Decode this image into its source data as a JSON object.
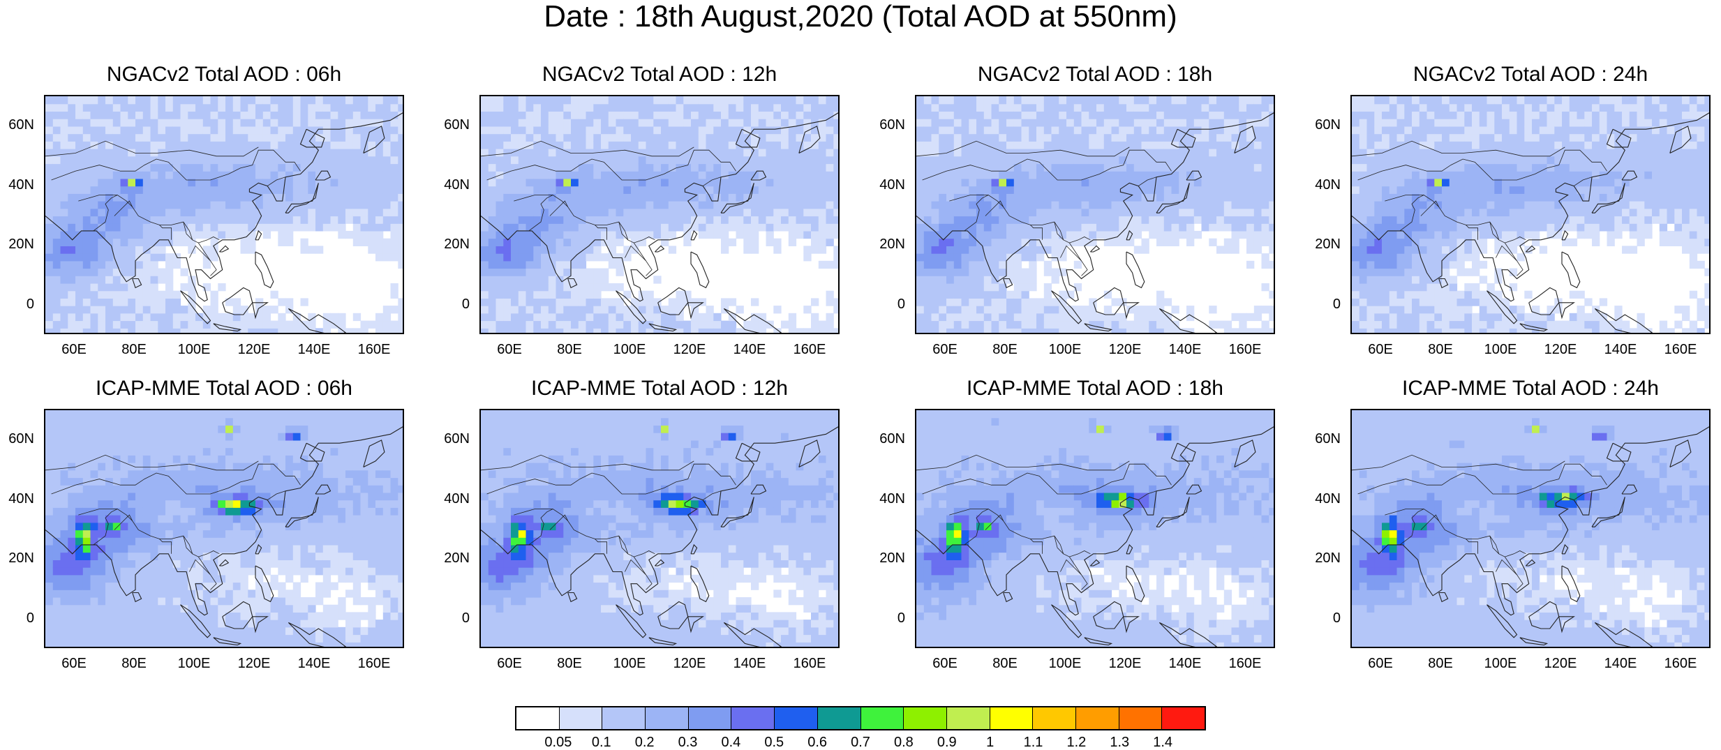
{
  "title": "Date : 18th August,2020 (Total AOD at 550nm)",
  "panels": [
    {
      "title": "NGACv2 Total AOD : 06h",
      "model": "ngac",
      "hour": 6
    },
    {
      "title": "NGACv2 Total AOD : 12h",
      "model": "ngac",
      "hour": 12
    },
    {
      "title": "NGACv2 Total AOD : 18h",
      "model": "ngac",
      "hour": 18
    },
    {
      "title": "NGACv2 Total AOD : 24h",
      "model": "ngac",
      "hour": 24
    },
    {
      "title": "ICAP-MME Total AOD : 06h",
      "model": "icap",
      "hour": 6
    },
    {
      "title": "ICAP-MME Total AOD : 12h",
      "model": "icap",
      "hour": 12
    },
    {
      "title": "ICAP-MME Total AOD : 18h",
      "model": "icap",
      "hour": 18
    },
    {
      "title": "ICAP-MME Total AOD : 24h",
      "model": "icap",
      "hour": 24
    }
  ],
  "map_extent": {
    "lon_min": 50,
    "lon_max": 170,
    "lat_min": -10,
    "lat_max": 70
  },
  "lat_ticks": [
    {
      "value": 60,
      "label": "60N"
    },
    {
      "value": 40,
      "label": "40N"
    },
    {
      "value": 20,
      "label": "20N"
    },
    {
      "value": 0,
      "label": "0"
    }
  ],
  "lon_ticks": [
    {
      "value": 60,
      "label": "60E"
    },
    {
      "value": 80,
      "label": "80E"
    },
    {
      "value": 100,
      "label": "100E"
    },
    {
      "value": 120,
      "label": "120E"
    },
    {
      "value": 140,
      "label": "140E"
    },
    {
      "value": 160,
      "label": "160E"
    }
  ],
  "colorbar": {
    "labels": [
      "0.05",
      "0.1",
      "0.2",
      "0.3",
      "0.4",
      "0.5",
      "0.6",
      "0.7",
      "0.8",
      "0.9",
      "1",
      "1.1",
      "1.2",
      "1.3",
      "1.4"
    ],
    "colors": [
      "#ffffff",
      "#d6e0fb",
      "#b4c6f8",
      "#9cb4f5",
      "#7f9cf1",
      "#6a6ff0",
      "#1f5fef",
      "#0f9a93",
      "#3ff23c",
      "#8ef000",
      "#c0ee50",
      "#ffff00",
      "#ffc800",
      "#ff9d00",
      "#ff7200",
      "#ff1a10"
    ]
  }
}
